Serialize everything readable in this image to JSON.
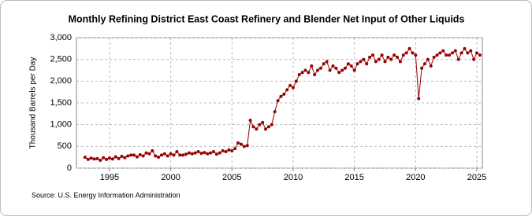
{
  "chart_data": {
    "type": "line",
    "title": "Monthly Refining District East Coast Refinery and Blender Net Input of Other Liquids",
    "y_label": "Thousand Barrels per Day",
    "source": "Source: U.S. Energy Information Administration",
    "xlim": [
      1992.3,
      2025.45
    ],
    "xticks": [
      1995,
      2000,
      2005,
      2010,
      2015,
      2020,
      2025
    ],
    "ylim": [
      0,
      3000
    ],
    "yticks": [
      0,
      500,
      {
        "value": 1000,
        "label": "1,000"
      },
      {
        "value": 1500,
        "label": "1,500"
      },
      {
        "value": 2000,
        "label": "2,000"
      },
      {
        "value": 2500,
        "label": "2,500"
      },
      {
        "value": 3000,
        "label": "3,000"
      }
    ],
    "grid": true,
    "x": [
      1993,
      1993.25,
      1993.5,
      1993.75,
      1994,
      1994.25,
      1994.5,
      1994.75,
      1995,
      1995.25,
      1995.5,
      1995.75,
      1996,
      1996.25,
      1996.5,
      1996.75,
      1997,
      1997.25,
      1997.5,
      1997.75,
      1998,
      1998.25,
      1998.5,
      1998.75,
      1999,
      1999.25,
      1999.5,
      1999.75,
      2000,
      2000.25,
      2000.5,
      2000.75,
      2001,
      2001.25,
      2001.5,
      2001.75,
      2002,
      2002.25,
      2002.5,
      2002.75,
      2003,
      2003.25,
      2003.5,
      2003.75,
      2004,
      2004.25,
      2004.5,
      2004.75,
      2005,
      2005.25,
      2005.5,
      2005.75,
      2006,
      2006.25,
      2006.5,
      2006.75,
      2007,
      2007.25,
      2007.5,
      2007.75,
      2008,
      2008.25,
      2008.5,
      2008.75,
      2009,
      2009.25,
      2009.5,
      2009.75,
      2010,
      2010.25,
      2010.5,
      2010.75,
      2011,
      2011.25,
      2011.5,
      2011.75,
      2012,
      2012.25,
      2012.5,
      2012.75,
      2013,
      2013.25,
      2013.5,
      2013.75,
      2014,
      2014.25,
      2014.5,
      2014.75,
      2015,
      2015.25,
      2015.5,
      2015.75,
      2016,
      2016.25,
      2016.5,
      2016.75,
      2017,
      2017.25,
      2017.5,
      2017.75,
      2018,
      2018.25,
      2018.5,
      2018.75,
      2019,
      2019.25,
      2019.5,
      2019.75,
      2020,
      2020.25,
      2020.5,
      2020.75,
      2021,
      2021.25,
      2021.5,
      2021.75,
      2022,
      2022.25,
      2022.5,
      2022.75,
      2023,
      2023.25,
      2023.5,
      2023.75,
      2024,
      2024.25,
      2024.5,
      2024.75,
      2025,
      2025.25
    ],
    "series": [
      {
        "color": "#990000",
        "values": [
          250,
          200,
          230,
          210,
          220,
          180,
          240,
          200,
          230,
          210,
          260,
          220,
          270,
          240,
          280,
          300,
          300,
          260,
          310,
          280,
          350,
          330,
          400,
          280,
          250,
          300,
          330,
          280,
          330,
          300,
          380,
          300,
          300,
          320,
          350,
          330,
          350,
          380,
          340,
          360,
          330,
          350,
          380,
          320,
          350,
          400,
          380,
          420,
          400,
          450,
          580,
          550,
          500,
          520,
          1100,
          950,
          900,
          1000,
          1050,
          900,
          950,
          1000,
          1300,
          1550,
          1650,
          1700,
          1800,
          1900,
          1850,
          2000,
          2150,
          2200,
          2250,
          2200,
          2350,
          2150,
          2250,
          2300,
          2400,
          2450,
          2250,
          2350,
          2300,
          2200,
          2250,
          2300,
          2400,
          2350,
          2250,
          2400,
          2450,
          2500,
          2400,
          2550,
          2600,
          2450,
          2500,
          2600,
          2450,
          2550,
          2500,
          2600,
          2550,
          2450,
          2600,
          2650,
          2750,
          2650,
          2600,
          1600,
          2300,
          2400,
          2500,
          2350,
          2550,
          2600,
          2650,
          2700,
          2600,
          2600,
          2650,
          2700,
          2500,
          2650,
          2750,
          2650,
          2700,
          2500,
          2650,
          2600
        ]
      }
    ]
  }
}
